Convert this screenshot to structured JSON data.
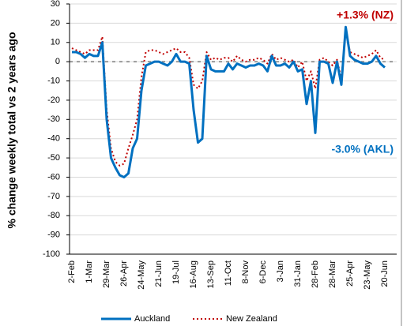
{
  "chart_data": {
    "type": "line",
    "y_label": "% change weekly total  vs 2 years ago",
    "annotations": [
      "+1.3% (NZ)",
      "-3.0% (AKL)"
    ],
    "categories": [
      "2-Feb",
      null,
      null,
      null,
      "1-Mar",
      null,
      null,
      null,
      "29-Mar",
      null,
      null,
      null,
      "26-Apr",
      null,
      null,
      null,
      "24-May",
      null,
      null,
      null,
      "21-Jun",
      null,
      null,
      null,
      "19-Jul",
      null,
      null,
      null,
      "16-Aug",
      null,
      null,
      null,
      "13-Sep",
      null,
      null,
      null,
      "11-Oct",
      null,
      null,
      null,
      "8-Nov",
      null,
      null,
      null,
      "6-Dec",
      null,
      null,
      null,
      "3-Jan",
      null,
      null,
      null,
      "31-Jan",
      null,
      null,
      null,
      "28-Feb",
      null,
      null,
      null,
      "28-Mar",
      null,
      null,
      null,
      "25-Apr",
      null,
      null,
      null,
      "23-May",
      null,
      null,
      null,
      "20-Jun"
    ],
    "series": [
      {
        "name": "Auckland",
        "color": "#0070c0",
        "style": "solid",
        "values": [
          5,
          5,
          4,
          2,
          4,
          3,
          3,
          10,
          -30,
          -50,
          -55,
          -59,
          -60,
          -58,
          -45,
          -40,
          -15,
          -2,
          -1,
          0,
          0,
          -1,
          -2,
          0,
          4,
          0,
          0,
          -1,
          -25,
          -42,
          -40,
          3,
          -4,
          -5,
          -5,
          -5,
          -1,
          -4,
          -1,
          -2,
          -3,
          -2,
          -2,
          -1,
          -2,
          -5,
          3,
          -2,
          -2,
          -1,
          -3,
          0,
          -5,
          -4,
          -22,
          -10,
          -37,
          0,
          0,
          -1,
          -11,
          0,
          -12,
          18,
          3,
          1,
          0,
          -1,
          -1,
          0,
          3,
          -1,
          -3
        ]
      },
      {
        "name": "New Zealand",
        "color": "#c00000",
        "style": "dotted",
        "values": [
          7,
          6,
          5,
          4,
          6,
          6,
          6,
          13,
          -25,
          -45,
          -52,
          -54,
          -53,
          -45,
          -38,
          -30,
          -8,
          5,
          6,
          6,
          5,
          4,
          5,
          6,
          7,
          5,
          5,
          2,
          -12,
          -14,
          -10,
          5,
          1,
          2,
          1,
          2,
          2,
          0,
          3,
          1,
          0,
          1,
          1,
          2,
          1,
          -1,
          4,
          1,
          2,
          1,
          0,
          1,
          -3,
          0,
          -10,
          -5,
          -14,
          1,
          2,
          0,
          -2,
          1,
          -9,
          16,
          5,
          4,
          3,
          2,
          3,
          4,
          6,
          2,
          1
        ]
      }
    ],
    "ylim": [
      -100,
      30
    ],
    "yticks": [
      -100,
      -90,
      -80,
      -70,
      -60,
      -50,
      -40,
      -30,
      -20,
      -10,
      0,
      10,
      20,
      30
    ],
    "grid": true,
    "legend": "bottom"
  }
}
